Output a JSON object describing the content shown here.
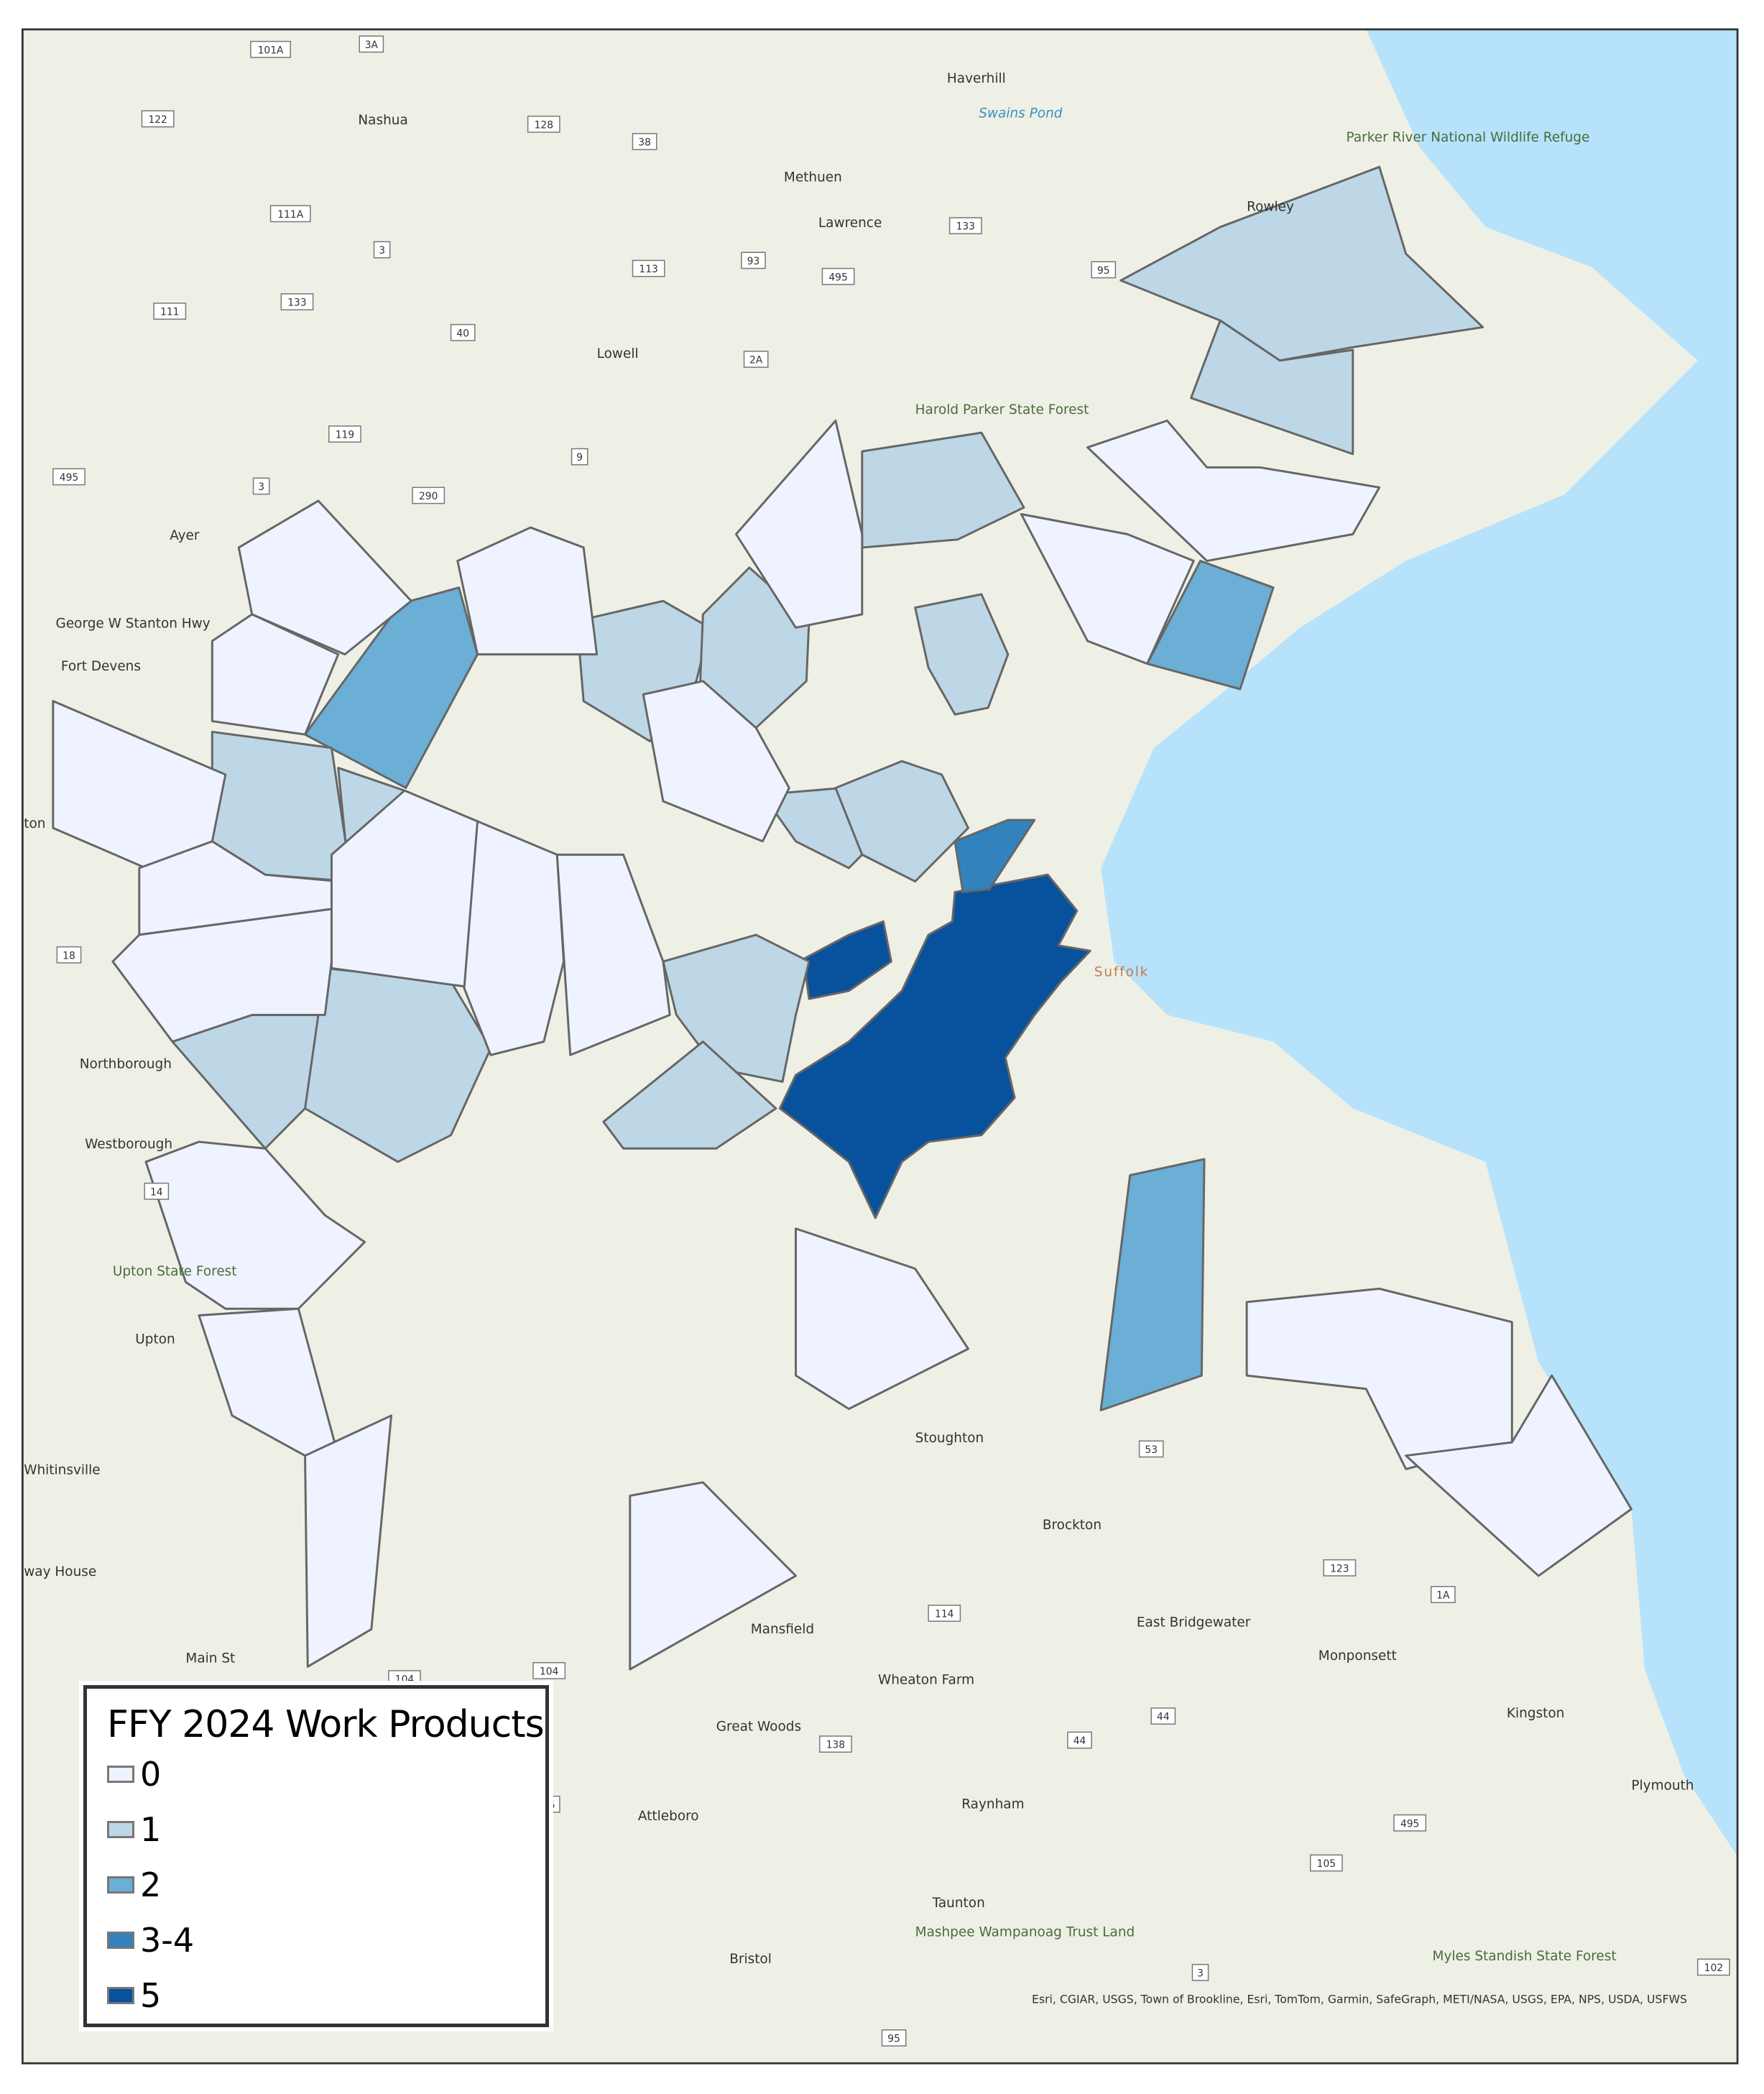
{
  "legend": {
    "title": "FFY 2024 Work Products",
    "items": [
      {
        "label": "0",
        "color": "#eff3ff"
      },
      {
        "label": "1",
        "color": "#bdd7e7"
      },
      {
        "label": "2",
        "color": "#6baed6"
      },
      {
        "label": "3-4",
        "color": "#3182bd"
      },
      {
        "label": "5",
        "color": "#08519c"
      }
    ]
  },
  "colors": {
    "ocean": "#b6e3fb",
    "land": "#eef0e6",
    "boundary": "#666666"
  },
  "region_categories": [
    "5",
    "5",
    "3-4",
    "2",
    "2",
    "2",
    "1",
    "1",
    "1",
    "1",
    "1",
    "1",
    "1",
    "1",
    "1",
    "1",
    "1",
    "1",
    "1",
    "1",
    "0",
    "0",
    "0",
    "0",
    "0",
    "0",
    "0",
    "0",
    "0",
    "0",
    "0",
    "0",
    "0",
    "0",
    "0",
    "0",
    "0",
    "0",
    "0",
    "0"
  ],
  "place_labels": [
    "Haverhill",
    "Nashua",
    "Methuen",
    "Lawrence",
    "Lowell",
    "Ayer",
    "Fort Devens",
    "Northborough",
    "Westborough",
    "Upton",
    "Whitinsville",
    "way House",
    "Stoughton",
    "Brockton",
    "East Bridgewater",
    "Mansfield",
    "Attleboro",
    "Raynham",
    "Taunton",
    "Bristol",
    "Kingston",
    "Plymouth",
    "Monponsett",
    "Wheaton Farm",
    "Great Woods",
    "Rowley",
    "Suffolk",
    "George W Stanton Hwy",
    "Main St",
    "ton"
  ],
  "park_labels": [
    "Parker River National Wildlife Refuge",
    "Harold Parker State Forest",
    "Upton State Forest",
    "Mashpee Wampanoag Trust Land",
    "Myles Standish State Forest"
  ],
  "water_labels": [
    "Swains Pond"
  ],
  "route_shields": [
    "101A",
    "3A",
    "122",
    "128",
    "38",
    "111A",
    "3",
    "133",
    "93",
    "495",
    "95",
    "113",
    "111",
    "133",
    "40",
    "2A",
    "119",
    "495",
    "3",
    "290",
    "9",
    "18",
    "14",
    "53",
    "123",
    "1A",
    "114",
    "104",
    "104",
    "44",
    "44",
    "495",
    "105",
    "138",
    "3",
    "95",
    "102",
    "6"
  ],
  "attribution": "Esri, CGIAR, USGS, Town of Brookline, Esri, TomTom, Garmin, SafeGraph, METI/NASA, USGS, EPA, NPS, USDA, USFWS"
}
